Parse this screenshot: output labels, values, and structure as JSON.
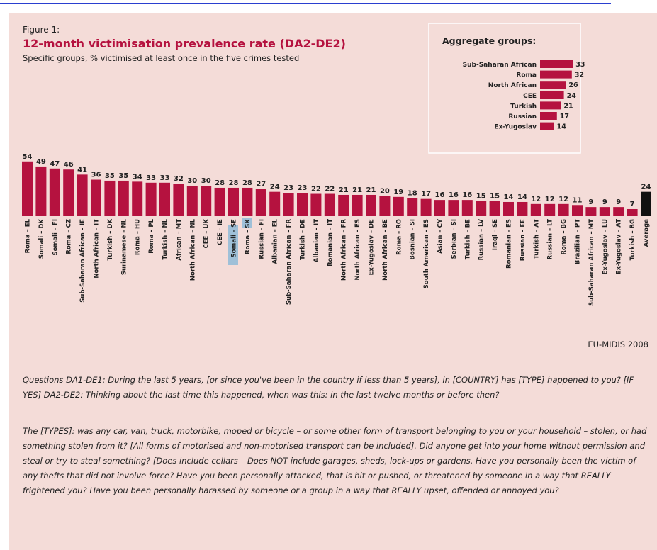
{
  "figure_label": "Figure 1:",
  "chart_data": [
    {
      "type": "bar",
      "title": "12-month victimisation prevalence rate (DA2-DE2)",
      "subtitle": "Specific groups, % victimised at least once in the five crimes tested",
      "categories": [
        "Roma – EL",
        "Somali – DK",
        "Somali – FI",
        "Roma – CZ",
        "Sub-Saharan African – IE",
        "North African – IT",
        "Turkish – DK",
        "Surinamese – NL",
        "Roma – HU",
        "Roma – PL",
        "Turkish – NL",
        "African – MT",
        "North African – NL",
        "CEE – UK",
        "CEE – IE",
        "Somali – SE",
        "Roma – SK",
        "Russian – FI",
        "Albanian – EL",
        "Sub-Saharan African – FR",
        "Turkish – DE",
        "Albanian – IT",
        "Romanian – IT",
        "North African – FR",
        "North African – ES",
        "Ex-Yugoslav – DE",
        "North African – BE",
        "Roma – RO",
        "Bosnian – SI",
        "South American – ES",
        "Asian – CY",
        "Serbian – SI",
        "Turkish – BE",
        "Russian – LV",
        "Iraqi – SE",
        "Romanian – ES",
        "Russian – EE",
        "Turkish – AT",
        "Russian – LT",
        "Roma – BG",
        "Brazilian – PT",
        "Sub-Saharan African – MT",
        "Ex-Yugoslav – LU",
        "Ex-Yugoslav – AT",
        "Turkish – BG",
        "Average"
      ],
      "values": [
        54,
        49,
        47,
        46,
        41,
        36,
        35,
        35,
        34,
        33,
        33,
        32,
        30,
        30,
        28,
        28,
        28,
        27,
        24,
        23,
        23,
        22,
        22,
        21,
        21,
        21,
        20,
        19,
        18,
        17,
        16,
        16,
        16,
        15,
        15,
        14,
        14,
        12,
        12,
        12,
        11,
        9,
        9,
        9,
        7,
        24
      ],
      "color": "#b5123f",
      "highlight": {
        "category": "Average",
        "color": "#111111"
      }
    },
    {
      "type": "bar",
      "orientation": "horizontal",
      "title": "Aggregate groups:",
      "categories": [
        "Sub-Saharan African",
        "Roma",
        "North African",
        "CEE",
        "Turkish",
        "Russian",
        "Ex-Yugoslav"
      ],
      "values": [
        33,
        32,
        26,
        24,
        21,
        17,
        14
      ],
      "color": "#b5123f"
    }
  ],
  "source": "EU-MIDIS 2008",
  "notes": [
    "Questions DA1-DE1: During the last 5 years, [or since you've been in the country if less than 5 years], in [COUNTRY] has [TYPE] happened to you? [IF YES] DA2-DE2: Thinking about the last time this happened, when was this: in the last twelve months or before then?",
    "The [TYPES]: was any car, van, truck, motorbike, moped or bicycle – or some other form of transport belonging to you or your household – stolen, or had something stolen from it? [All forms of motorised and non-motorised transport can be included]. Did anyone get into your home without permission and steal or try to steal something? [Does include cellars – Does NOT include garages, sheds, lock-ups or gardens. Have you personally been the victim of any thefts that did not involve force? Have you been personally attacked, that is hit or pushed, or threatened by someone in a way that REALLY frightened you? Have you been personally harassed by someone or a group in a way that REALLY upset, offended or annoyed you?"
  ]
}
